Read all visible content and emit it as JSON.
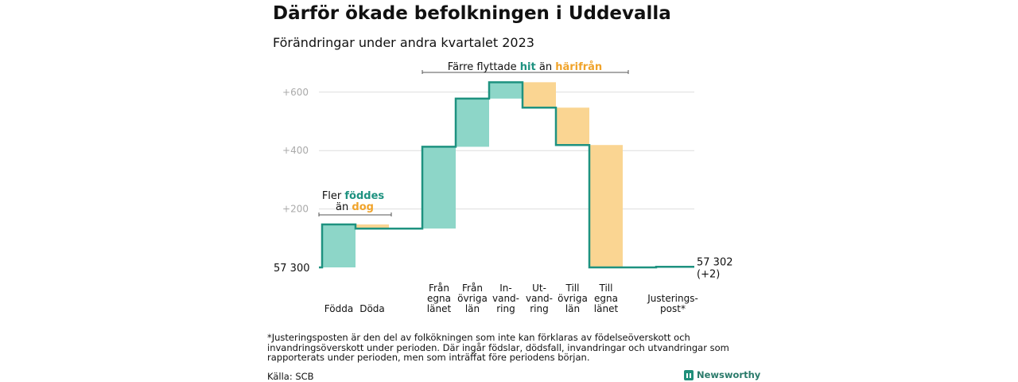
{
  "title": "Därför ökade befolkningen i Uddevalla",
  "subtitle": "Förändringar under andra kvartalet 2023",
  "colors": {
    "increase": "#8dd6c8",
    "decrease": "#fad592",
    "line": "#1e9280",
    "teal_text": "#1e9280",
    "orange_text": "#f0a32a",
    "grid": "#dddddd",
    "tick": "#aaaaaa"
  },
  "chart_data": {
    "type": "waterfall",
    "start_label": "57  300",
    "end_label_value": "57 302",
    "end_label_change": "(+2)",
    "start_value": 0,
    "ylim": [
      0,
      660
    ],
    "yticks": [
      {
        "value": 200,
        "label": "+200"
      },
      {
        "value": 400,
        "label": "+400"
      },
      {
        "value": 600,
        "label": "+600"
      }
    ],
    "steps": [
      {
        "label_lines": [
          "Födda"
        ],
        "change": 147,
        "kind": "increase"
      },
      {
        "label_lines": [
          "Döda"
        ],
        "change": -14,
        "kind": "decrease"
      },
      {
        "label_lines": [
          "Från",
          "egna",
          "länet"
        ],
        "change": 280,
        "kind": "increase",
        "gap_before": true
      },
      {
        "label_lines": [
          "Från",
          "övriga",
          "län"
        ],
        "change": 165,
        "kind": "increase"
      },
      {
        "label_lines": [
          "In-",
          "vand-",
          "ring"
        ],
        "change": 56,
        "kind": "increase"
      },
      {
        "label_lines": [
          "Ut-",
          "vand-",
          "ring"
        ],
        "change": -87,
        "kind": "decrease"
      },
      {
        "label_lines": [
          "Till",
          "övriga",
          "län"
        ],
        "change": -128,
        "kind": "decrease"
      },
      {
        "label_lines": [
          "Till",
          "egna",
          "länet"
        ],
        "change": -419,
        "kind": "decrease"
      },
      {
        "label_lines": [
          "Justerings-",
          "post*"
        ],
        "change": 2,
        "kind": "adjustment"
      }
    ],
    "annotations": [
      {
        "line1": "Fler ",
        "strong1": "föddes",
        "line2": "än ",
        "strong2": "dog"
      },
      {
        "text": "Färre flyttade ",
        "strong1": "hit",
        "mid": "  än ",
        "strong2": "härifrån"
      }
    ]
  },
  "footnote": "*Justeringsposten är den del av folkökningen som inte kan förklaras av födelseöverskott och invandringsöverskott under perioden. Där ingår födslar, dödsfall, invandringar och utvandringar som rapporterats under perioden, men som inträffat före periodens början.",
  "source": "Källa: SCB",
  "brand": "Newsworthy"
}
